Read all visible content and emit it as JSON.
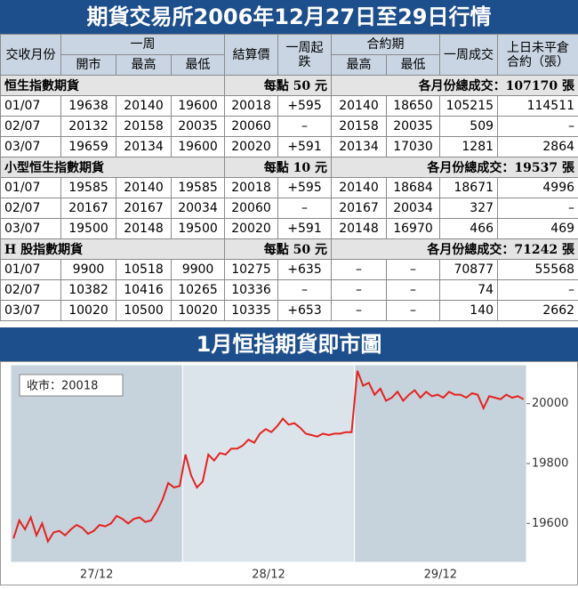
{
  "header": {
    "title": "期貨交易所2006年12月27日至29日行情"
  },
  "table": {
    "header_top": [
      "交收月份",
      "一周",
      "結算價",
      "一周起跌",
      "合約期",
      "一周成交",
      "上日未平倉合約（張）"
    ],
    "header_sub": [
      "開市",
      "最高",
      "最低",
      "最高",
      "最低"
    ],
    "sections": [
      {
        "name": "恒生指數期貨",
        "note": "每點 50 元",
        "total": "各月份總成交：107170 張",
        "rows": [
          [
            "01/07",
            "19638",
            "20140",
            "19600",
            "20018",
            "+595",
            "20140",
            "18650",
            "105215",
            "114511"
          ],
          [
            "02/07",
            "20132",
            "20158",
            "20035",
            "20060",
            "–",
            "20158",
            "20035",
            "509",
            "–"
          ],
          [
            "03/07",
            "19659",
            "20134",
            "19600",
            "20020",
            "+591",
            "20134",
            "17030",
            "1281",
            "2864"
          ]
        ]
      },
      {
        "name": "小型恒生指數期貨",
        "note": "每點 10 元",
        "total": "各月份總成交：19537 張",
        "rows": [
          [
            "01/07",
            "19585",
            "20140",
            "19585",
            "20018",
            "+595",
            "20140",
            "18684",
            "18671",
            "4996"
          ],
          [
            "02/07",
            "20167",
            "20167",
            "20034",
            "20060",
            "–",
            "20167",
            "20034",
            "327",
            "–"
          ],
          [
            "03/07",
            "19500",
            "20148",
            "19500",
            "20020",
            "+591",
            "20148",
            "16970",
            "466",
            "469"
          ]
        ]
      },
      {
        "name": "H 股指數期貨",
        "note": "每點 50 元",
        "total": "各月份總成交：71242 張",
        "rows": [
          [
            "01/07",
            "9900",
            "10518",
            "9900",
            "10275",
            "+635",
            "–",
            "–",
            "70877",
            "55568"
          ],
          [
            "02/07",
            "10382",
            "10416",
            "10265",
            "10336",
            "–",
            "–",
            "–",
            "74",
            "–"
          ],
          [
            "03/07",
            "10020",
            "10500",
            "10020",
            "10335",
            "+653",
            "–",
            "–",
            "140",
            "2662"
          ]
        ]
      }
    ]
  },
  "chart_data": {
    "type": "line",
    "title": "1月恒指期貨即市圖",
    "annotation": "收市：20018",
    "days": [
      "27/12",
      "28/12",
      "29/12"
    ],
    "series": [
      {
        "color": "#e3231f",
        "values": [
          19550,
          19610,
          19580,
          19620,
          19560,
          19600,
          19540,
          19570,
          19575,
          19560,
          19580,
          19595,
          19585,
          19565,
          19575,
          19595,
          19590,
          19600,
          19625,
          19615,
          19600,
          19615,
          19620,
          19605,
          19610,
          19640,
          19680,
          19735,
          19720,
          19725,
          19830,
          19760,
          19720,
          19740,
          19830,
          19810,
          19835,
          19830,
          19850,
          19850,
          19860,
          19880,
          19870,
          19900,
          19915,
          19905,
          19925,
          19950,
          19930,
          19935,
          19920,
          19900,
          19895,
          19890,
          19900,
          19895,
          19900,
          19900,
          19905,
          19905,
          20110,
          20060,
          20070,
          20030,
          20050,
          20010,
          20020,
          20040,
          20010,
          20030,
          20045,
          20020,
          20040,
          20025,
          20030,
          20020,
          20040,
          20030,
          20030,
          20020,
          20035,
          20030,
          19985,
          20025,
          20020,
          20015,
          20030,
          20020,
          20025,
          20015
        ]
      }
    ],
    "ylim": [
      19470,
      20130
    ],
    "yticks": [
      19600,
      19800,
      20000
    ]
  }
}
